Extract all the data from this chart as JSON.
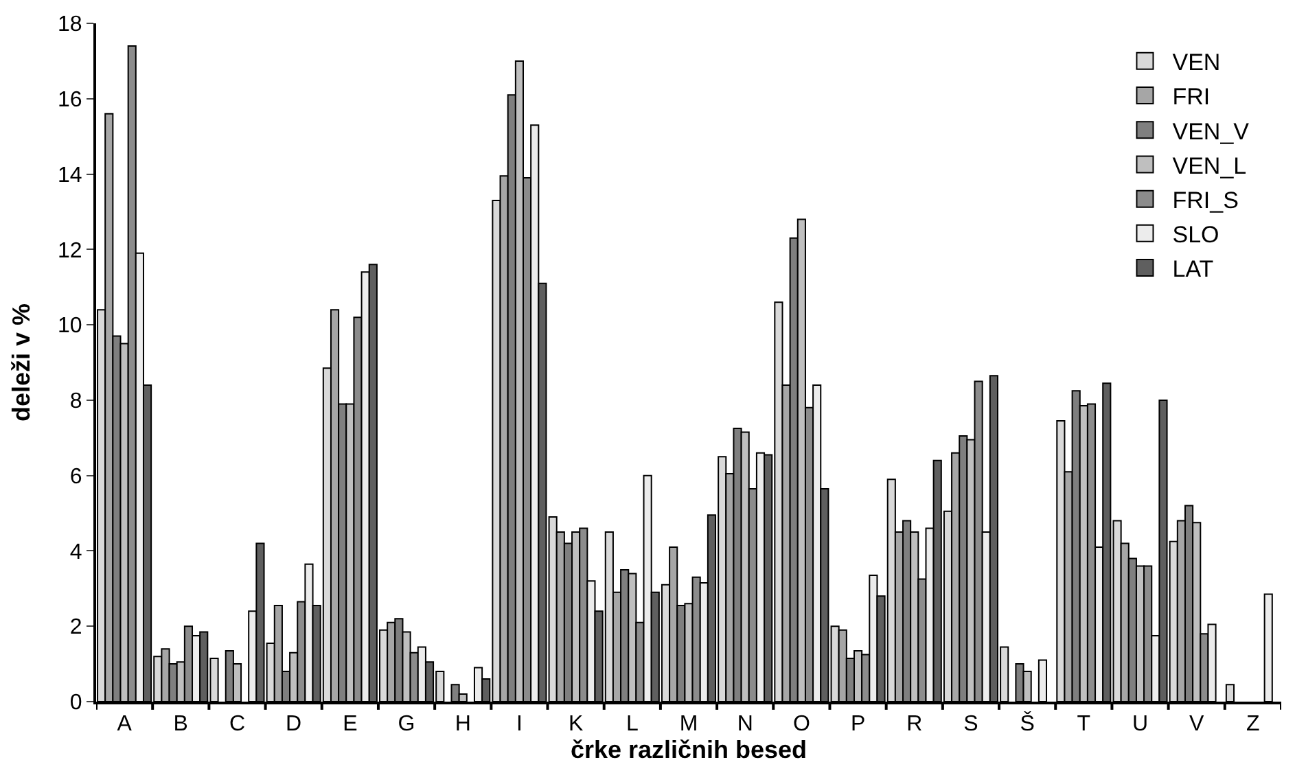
{
  "chart_data": {
    "type": "bar",
    "xlabel": "črke različnih besed",
    "ylabel": "deleži v %",
    "categories": [
      "A",
      "B",
      "C",
      "D",
      "E",
      "G",
      "H",
      "I",
      "K",
      "L",
      "M",
      "N",
      "O",
      "P",
      "R",
      "S",
      "Š",
      "T",
      "U",
      "V",
      "Z"
    ],
    "series": [
      {
        "name": "VEN",
        "color": "#d9d9d9",
        "values": [
          10.4,
          1.2,
          1.15,
          1.55,
          8.85,
          1.9,
          0.8,
          13.3,
          4.9,
          4.5,
          3.1,
          6.5,
          10.6,
          2.0,
          5.9,
          5.05,
          1.45,
          7.45,
          4.8,
          4.25,
          0.45
        ]
      },
      {
        "name": "FRI",
        "color": "#a6a6a6",
        "values": [
          15.6,
          1.4,
          null,
          2.55,
          10.4,
          2.1,
          null,
          13.95,
          4.5,
          2.9,
          4.1,
          6.05,
          8.4,
          1.9,
          4.5,
          6.6,
          null,
          6.1,
          4.2,
          4.8,
          null
        ]
      },
      {
        "name": "VEN_V",
        "color": "#7f7f7f",
        "values": [
          9.7,
          1.0,
          1.35,
          0.8,
          7.9,
          2.2,
          0.45,
          16.1,
          4.2,
          3.5,
          2.55,
          7.25,
          12.3,
          1.15,
          4.8,
          7.05,
          1.0,
          8.25,
          3.8,
          5.2,
          null
        ]
      },
      {
        "name": "VEN_L",
        "color": "#bfbfbf",
        "values": [
          9.5,
          1.05,
          1.0,
          1.3,
          7.9,
          1.85,
          0.2,
          17.0,
          4.5,
          3.4,
          2.6,
          7.15,
          12.8,
          1.35,
          4.5,
          6.95,
          0.8,
          7.85,
          3.6,
          4.75,
          null
        ]
      },
      {
        "name": "FRI_S",
        "color": "#8c8c8c",
        "values": [
          17.4,
          2.0,
          null,
          2.65,
          10.2,
          1.3,
          null,
          13.9,
          4.6,
          2.1,
          3.3,
          5.65,
          7.8,
          1.25,
          3.25,
          8.5,
          null,
          7.9,
          3.6,
          1.8,
          null
        ]
      },
      {
        "name": "SLO",
        "color": "#ececec",
        "values": [
          11.9,
          1.75,
          2.4,
          3.65,
          11.4,
          1.45,
          0.9,
          15.3,
          3.2,
          6.0,
          3.15,
          6.6,
          8.4,
          3.35,
          4.6,
          4.5,
          1.1,
          4.1,
          1.75,
          2.05,
          2.85
        ]
      },
      {
        "name": "LAT",
        "color": "#5f5f5f",
        "values": [
          8.4,
          1.85,
          4.2,
          2.55,
          11.6,
          1.05,
          0.6,
          11.1,
          2.4,
          2.9,
          4.95,
          6.55,
          5.65,
          2.8,
          6.4,
          8.65,
          null,
          8.45,
          8.0,
          null,
          null
        ]
      }
    ],
    "ylim": [
      0,
      18
    ],
    "yticks": [
      0,
      2,
      4,
      6,
      8,
      10,
      12,
      14,
      16,
      18
    ],
    "legend": "top right"
  }
}
